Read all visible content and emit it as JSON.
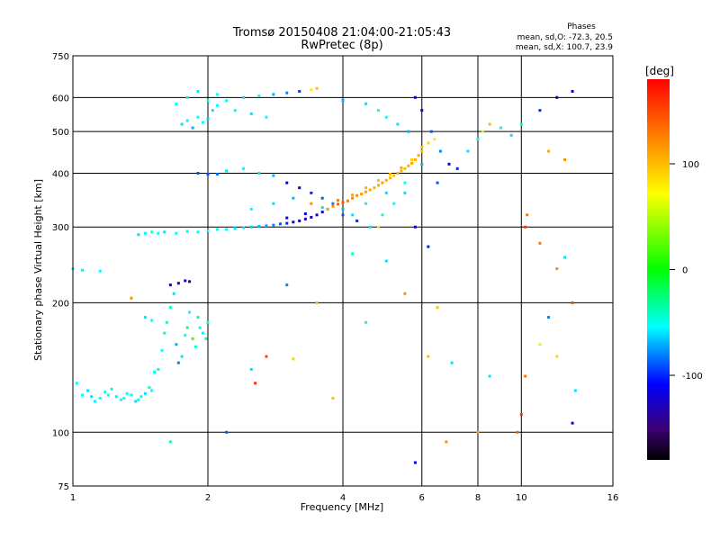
{
  "chart_data": {
    "type": "scatter",
    "title": "Tromsø 20150408 21:04:00-21:05:43",
    "subtitle": "RwPretec (8p)",
    "xlabel": "Frequency [MHz]",
    "ylabel": "Stationary phase Virtual Height [km]",
    "x_scale": "log",
    "y_scale": "log",
    "xlim": [
      1,
      16
    ],
    "ylim": [
      75,
      750
    ],
    "x_ticks": [
      1,
      2,
      4,
      6,
      8,
      10,
      16
    ],
    "y_ticks": [
      75,
      100,
      200,
      300,
      400,
      500,
      600,
      750
    ],
    "grid": true,
    "phase_box": {
      "title": "Phases",
      "line_o": "mean, sd,O: -72.3, 20.5",
      "line_x": "mean, sd,X: 100.7, 23.9"
    },
    "colorbar": {
      "label": "[deg]",
      "range": [
        -180,
        180
      ],
      "ticks": [
        100,
        0,
        -100
      ]
    },
    "series": [
      {
        "points": [
          [
            1.05,
            122,
            -55
          ],
          [
            1.1,
            121,
            -60
          ],
          [
            1.15,
            120,
            -55
          ],
          [
            1.2,
            122,
            -50
          ],
          [
            1.25,
            121,
            -58
          ],
          [
            1.3,
            120,
            -52
          ],
          [
            1.35,
            122,
            -55
          ],
          [
            1.4,
            119,
            -50
          ],
          [
            1.45,
            123,
            -60
          ],
          [
            1.5,
            125,
            -55
          ],
          [
            1.55,
            140,
            -50
          ],
          [
            1.6,
            170,
            -45
          ],
          [
            1.65,
            195,
            -40
          ],
          [
            1.7,
            160,
            -70
          ],
          [
            1.75,
            150,
            -60
          ],
          [
            1.8,
            175,
            -30
          ],
          [
            1.85,
            165,
            20
          ],
          [
            1.9,
            185,
            -40
          ],
          [
            1.95,
            170,
            -55
          ],
          [
            2.0,
            180,
            -50
          ],
          [
            1.02,
            130,
            -55
          ],
          [
            1.08,
            125,
            -60
          ],
          [
            1.12,
            118,
            -55
          ],
          [
            1.18,
            124,
            -50
          ],
          [
            1.22,
            126,
            -50
          ],
          [
            1.28,
            119,
            -55
          ],
          [
            1.32,
            123,
            -52
          ],
          [
            1.38,
            118,
            -60
          ],
          [
            1.42,
            121,
            -50
          ],
          [
            1.48,
            127,
            -45
          ],
          [
            1.52,
            138,
            -50
          ],
          [
            1.58,
            155,
            -55
          ],
          [
            1.62,
            180,
            -45
          ],
          [
            1.68,
            210,
            -60
          ],
          [
            1.72,
            145,
            -80
          ],
          [
            1.78,
            168,
            -50
          ],
          [
            1.82,
            190,
            -55
          ],
          [
            1.88,
            158,
            -45
          ],
          [
            1.92,
            175,
            -50
          ],
          [
            1.98,
            165,
            -40
          ],
          [
            1.65,
            220,
            -125
          ],
          [
            1.72,
            222,
            -125
          ],
          [
            1.78,
            225,
            -130
          ],
          [
            1.82,
            224,
            -120
          ],
          [
            1.0,
            240,
            -50
          ],
          [
            1.05,
            238,
            -45
          ],
          [
            1.15,
            237,
            -55
          ],
          [
            1.35,
            205,
            120
          ],
          [
            1.45,
            185,
            -60
          ],
          [
            1.5,
            182,
            -55
          ]
        ]
      },
      {
        "points": [
          [
            1.4,
            288,
            -60
          ],
          [
            1.45,
            290,
            -55
          ],
          [
            1.5,
            292,
            -50
          ],
          [
            1.55,
            290,
            -55
          ],
          [
            1.6,
            292,
            -60
          ],
          [
            1.7,
            290,
            -55
          ],
          [
            1.8,
            293,
            -55
          ],
          [
            1.9,
            292,
            -50
          ],
          [
            2.0,
            294,
            -55
          ],
          [
            2.1,
            296,
            -50
          ],
          [
            2.2,
            296,
            -55
          ],
          [
            2.3,
            298,
            -60
          ],
          [
            2.4,
            299,
            -60
          ],
          [
            2.5,
            300,
            -65
          ],
          [
            2.6,
            301,
            -70
          ],
          [
            2.7,
            302,
            -75
          ],
          [
            2.8,
            303,
            -80
          ],
          [
            2.9,
            305,
            -90
          ],
          [
            3.0,
            306,
            -100
          ],
          [
            3.1,
            308,
            -115
          ],
          [
            3.2,
            310,
            -120
          ],
          [
            3.3,
            313,
            -125
          ],
          [
            3.4,
            316,
            -130
          ],
          [
            3.5,
            320,
            -120
          ],
          [
            3.6,
            325,
            -110
          ],
          [
            3.7,
            330,
            -100
          ],
          [
            3.8,
            335,
            120
          ],
          [
            3.9,
            339,
            140
          ],
          [
            4.0,
            342,
            145
          ],
          [
            4.1,
            345,
            130
          ],
          [
            4.2,
            350,
            125
          ],
          [
            4.3,
            355,
            120
          ],
          [
            4.4,
            358,
            115
          ],
          [
            4.5,
            362,
            110
          ],
          [
            4.6,
            366,
            108
          ],
          [
            4.7,
            370,
            105
          ],
          [
            4.8,
            375,
            110
          ],
          [
            4.9,
            380,
            115
          ],
          [
            5.0,
            385,
            108
          ],
          [
            5.1,
            390,
            105
          ],
          [
            5.2,
            395,
            100
          ],
          [
            5.3,
            400,
            105
          ],
          [
            5.4,
            405,
            110
          ],
          [
            5.5,
            410,
            100
          ],
          [
            5.6,
            416,
            108
          ],
          [
            5.7,
            422,
            112
          ],
          [
            5.8,
            430,
            105
          ],
          [
            5.9,
            440,
            110
          ],
          [
            6.0,
            450,
            100
          ],
          [
            3.0,
            315,
            -110
          ],
          [
            3.3,
            322,
            -120
          ],
          [
            3.6,
            333,
            -60
          ],
          [
            3.9,
            346,
            130
          ],
          [
            4.2,
            356,
            110
          ],
          [
            4.5,
            370,
            105
          ],
          [
            4.8,
            385,
            100
          ],
          [
            5.1,
            398,
            105
          ],
          [
            5.4,
            412,
            110
          ],
          [
            5.7,
            430,
            95
          ],
          [
            6.0,
            460,
            100
          ],
          [
            6.2,
            470,
            90
          ],
          [
            6.4,
            480,
            80
          ]
        ]
      },
      {
        "points": [
          [
            1.75,
            520,
            -60
          ],
          [
            1.8,
            530,
            -55
          ],
          [
            1.85,
            510,
            -70
          ],
          [
            1.9,
            540,
            -50
          ],
          [
            1.95,
            525,
            -55
          ],
          [
            2.0,
            535,
            -65
          ],
          [
            2.05,
            560,
            -60
          ],
          [
            2.1,
            575,
            -55
          ],
          [
            2.2,
            590,
            -50
          ],
          [
            2.4,
            600,
            -60
          ],
          [
            2.6,
            605,
            -55
          ],
          [
            2.8,
            610,
            -70
          ],
          [
            3.0,
            615,
            -80
          ],
          [
            3.2,
            620,
            -95
          ],
          [
            3.4,
            625,
            80
          ],
          [
            3.5,
            630,
            100
          ],
          [
            1.7,
            580,
            -55
          ],
          [
            1.8,
            600,
            -50
          ],
          [
            1.9,
            620,
            -60
          ],
          [
            2.0,
            590,
            -55
          ],
          [
            2.1,
            610,
            -50
          ],
          [
            2.3,
            560,
            -55
          ],
          [
            2.5,
            550,
            -60
          ],
          [
            2.7,
            540,
            -55
          ],
          [
            4.0,
            590,
            -70
          ],
          [
            4.5,
            580,
            -60
          ],
          [
            4.8,
            560,
            -50
          ],
          [
            5.0,
            540,
            -55
          ],
          [
            5.3,
            520,
            -60
          ],
          [
            5.6,
            500,
            -70
          ],
          [
            5.8,
            600,
            -110
          ],
          [
            6.0,
            560,
            -120
          ],
          [
            6.3,
            500,
            -90
          ],
          [
            6.6,
            450,
            -80
          ],
          [
            6.9,
            420,
            -110
          ],
          [
            7.2,
            410,
            -100
          ],
          [
            7.6,
            450,
            -60
          ],
          [
            8.0,
            480,
            -50
          ],
          [
            8.2,
            500,
            60
          ],
          [
            8.5,
            520,
            100
          ],
          [
            9.0,
            510,
            -50
          ],
          [
            9.5,
            490,
            -60
          ],
          [
            10.0,
            520,
            -40
          ],
          [
            11.0,
            560,
            -100
          ],
          [
            12.0,
            600,
            -110
          ],
          [
            13.0,
            620,
            -120
          ],
          [
            11.5,
            450,
            110
          ],
          [
            12.5,
            430,
            120
          ]
        ]
      },
      {
        "points": [
          [
            1.9,
            400,
            -90
          ],
          [
            2.0,
            398,
            -90
          ],
          [
            2.1,
            398,
            -85
          ],
          [
            2.2,
            405,
            -60
          ],
          [
            2.4,
            410,
            -55
          ],
          [
            2.6,
            400,
            -60
          ],
          [
            2.8,
            395,
            -70
          ],
          [
            3.0,
            380,
            -110
          ],
          [
            3.2,
            370,
            -120
          ],
          [
            3.4,
            360,
            -100
          ],
          [
            3.6,
            350,
            -90
          ],
          [
            3.8,
            340,
            -80
          ],
          [
            4.0,
            330,
            -70
          ],
          [
            4.2,
            320,
            -60
          ],
          [
            4.5,
            340,
            -55
          ],
          [
            5.0,
            360,
            -60
          ],
          [
            5.5,
            380,
            -50
          ],
          [
            6.0,
            420,
            -70
          ],
          [
            2.5,
            330,
            -55
          ],
          [
            2.8,
            340,
            -60
          ],
          [
            3.1,
            350,
            -70
          ],
          [
            3.4,
            340,
            120
          ],
          [
            3.7,
            330,
            110
          ],
          [
            4.0,
            320,
            -90
          ],
          [
            4.3,
            310,
            -100
          ],
          [
            4.6,
            300,
            -60
          ],
          [
            4.9,
            320,
            -50
          ],
          [
            5.2,
            340,
            -55
          ],
          [
            5.5,
            360,
            -60
          ],
          [
            5.8,
            300,
            -110
          ],
          [
            6.2,
            270,
            -100
          ],
          [
            6.5,
            380,
            -90
          ]
        ]
      },
      {
        "points": [
          [
            1.65,
            95,
            -40
          ],
          [
            2.2,
            100,
            -90
          ],
          [
            2.5,
            140,
            -60
          ],
          [
            2.55,
            130,
            160
          ],
          [
            2.7,
            150,
            150
          ],
          [
            3.0,
            220,
            -80
          ],
          [
            3.1,
            148,
            90
          ],
          [
            3.5,
            200,
            100
          ],
          [
            3.8,
            120,
            100
          ],
          [
            4.2,
            260,
            -40
          ],
          [
            4.5,
            180,
            -50
          ],
          [
            4.8,
            300,
            60
          ],
          [
            5.0,
            250,
            -60
          ],
          [
            5.5,
            210,
            120
          ],
          [
            5.8,
            85,
            -110
          ],
          [
            6.2,
            150,
            100
          ],
          [
            6.5,
            195,
            100
          ],
          [
            6.8,
            95,
            120
          ],
          [
            7.0,
            145,
            -60
          ],
          [
            8.0,
            100,
            110
          ],
          [
            8.5,
            135,
            -60
          ],
          [
            9.8,
            100,
            140
          ],
          [
            10.0,
            110,
            160
          ],
          [
            10.2,
            135,
            130
          ],
          [
            11.0,
            160,
            80
          ],
          [
            11.5,
            185,
            -80
          ],
          [
            12.0,
            150,
            90
          ],
          [
            12.5,
            255,
            -60
          ],
          [
            13.0,
            200,
            150
          ],
          [
            13.0,
            105,
            -110
          ],
          [
            13.2,
            125,
            -60
          ],
          [
            11.0,
            275,
            130
          ],
          [
            12.0,
            240,
            120
          ],
          [
            10.2,
            300,
            160
          ],
          [
            10.3,
            320,
            130
          ]
        ]
      }
    ]
  }
}
